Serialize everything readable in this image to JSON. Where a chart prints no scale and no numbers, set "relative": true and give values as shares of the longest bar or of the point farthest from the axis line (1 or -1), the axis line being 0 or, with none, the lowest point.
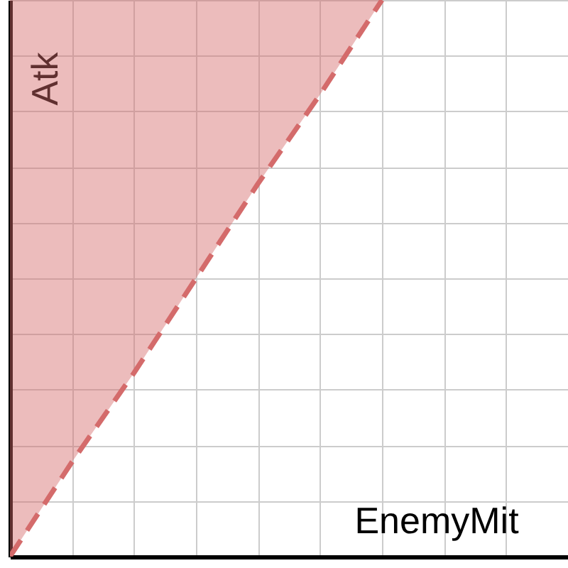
{
  "chart_data": {
    "type": "line",
    "relative": true,
    "xlabel": "EnemyMit",
    "ylabel": "Atk",
    "categories": [
      null,
      null,
      null,
      null,
      null,
      null,
      null,
      null,
      null,
      null
    ],
    "series": [
      {
        "color": "#d46b6b",
        "values": [
          0,
          0.17,
          0.33,
          0.5,
          0.67,
          0.83,
          1,
          null,
          null,
          null
        ],
        "lower": [
          0,
          0.17,
          0.33,
          0.5,
          0.67,
          0.83,
          1,
          null,
          null,
          null
        ],
        "upper": [
          1,
          1,
          1,
          1,
          1,
          1,
          1,
          null,
          null,
          null
        ]
      }
    ],
    "grid": true,
    "line_style": "dashed"
  }
}
